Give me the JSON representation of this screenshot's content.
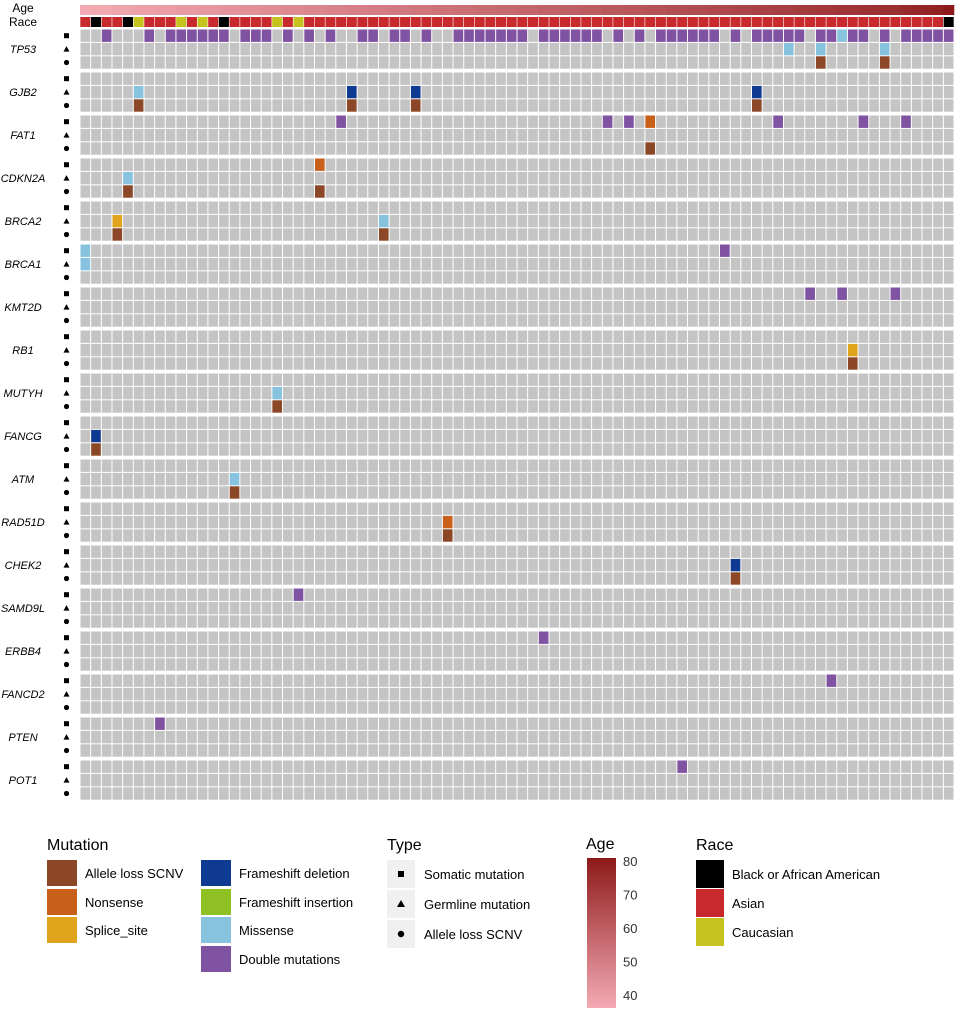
{
  "chart_data": {
    "type": "heatmap",
    "title": "",
    "n_samples": 82,
    "track_labels": {
      "age": "Age",
      "race": "Race"
    },
    "type_symbols": [
      "square",
      "triangle",
      "circle"
    ],
    "race_codes": {
      "B": "Black or African American",
      "A": "Asian",
      "C": "Caucasian"
    },
    "race_track": [
      "A",
      "B",
      "A",
      "A",
      "B",
      "C",
      "A",
      "A",
      "A",
      "C",
      "A",
      "C",
      "A",
      "B",
      "A",
      "A",
      "A",
      "A",
      "C",
      "A",
      "C",
      "A",
      "A",
      "A",
      "A",
      "A",
      "A",
      "A",
      "A",
      "A",
      "A",
      "A",
      "A",
      "A",
      "A",
      "A",
      "A",
      "A",
      "A",
      "A",
      "A",
      "A",
      "A",
      "A",
      "A",
      "A",
      "A",
      "A",
      "A",
      "A",
      "A",
      "A",
      "A",
      "A",
      "A",
      "A",
      "A",
      "A",
      "A",
      "A",
      "A",
      "A",
      "A",
      "A",
      "A",
      "A",
      "A",
      "A",
      "A",
      "A",
      "A",
      "A",
      "A",
      "A",
      "A",
      "A",
      "A",
      "A",
      "A",
      "A",
      "A",
      "B"
    ],
    "age_range": [
      36,
      80
    ],
    "age_track": [
      36,
      37,
      37,
      38,
      38,
      39,
      39,
      40,
      40,
      41,
      41,
      42,
      42,
      43,
      43,
      44,
      44,
      45,
      45,
      46,
      46,
      47,
      47,
      48,
      48,
      49,
      49,
      50,
      50,
      51,
      51,
      52,
      52,
      53,
      53,
      54,
      54,
      55,
      55,
      56,
      56,
      57,
      57,
      58,
      58,
      59,
      59,
      60,
      60,
      61,
      61,
      62,
      62,
      63,
      63,
      64,
      64,
      65,
      65,
      66,
      66,
      67,
      67,
      68,
      68,
      69,
      69,
      70,
      70,
      71,
      71,
      72,
      72,
      73,
      73,
      74,
      74,
      75,
      76,
      77,
      78,
      80
    ],
    "genes": [
      "TP53",
      "GJB2",
      "FAT1",
      "CDKN2A",
      "BRCA2",
      "BRCA1",
      "KMT2D",
      "RB1",
      "MUTYH",
      "FANCG",
      "ATM",
      "RAD51D",
      "CHEK2",
      "SAMD9L",
      "ERBB4",
      "FANCD2",
      "PTEN",
      "POT1"
    ],
    "events": [
      {
        "gene": "TP53",
        "row": 0,
        "sample": 2,
        "mut": "double"
      },
      {
        "gene": "TP53",
        "row": 0,
        "sample": 6,
        "mut": "double"
      },
      {
        "gene": "TP53",
        "row": 0,
        "sample": 8,
        "mut": "double"
      },
      {
        "gene": "TP53",
        "row": 0,
        "sample": 9,
        "mut": "double"
      },
      {
        "gene": "TP53",
        "row": 0,
        "sample": 10,
        "mut": "double"
      },
      {
        "gene": "TP53",
        "row": 0,
        "sample": 11,
        "mut": "double"
      },
      {
        "gene": "TP53",
        "row": 0,
        "sample": 12,
        "mut": "double"
      },
      {
        "gene": "TP53",
        "row": 0,
        "sample": 13,
        "mut": "double"
      },
      {
        "gene": "TP53",
        "row": 0,
        "sample": 15,
        "mut": "double"
      },
      {
        "gene": "TP53",
        "row": 0,
        "sample": 16,
        "mut": "double"
      },
      {
        "gene": "TP53",
        "row": 0,
        "sample": 17,
        "mut": "double"
      },
      {
        "gene": "TP53",
        "row": 0,
        "sample": 19,
        "mut": "double"
      },
      {
        "gene": "TP53",
        "row": 0,
        "sample": 21,
        "mut": "double"
      },
      {
        "gene": "TP53",
        "row": 0,
        "sample": 23,
        "mut": "double"
      },
      {
        "gene": "TP53",
        "row": 0,
        "sample": 26,
        "mut": "double"
      },
      {
        "gene": "TP53",
        "row": 0,
        "sample": 27,
        "mut": "double"
      },
      {
        "gene": "TP53",
        "row": 0,
        "sample": 29,
        "mut": "double"
      },
      {
        "gene": "TP53",
        "row": 0,
        "sample": 30,
        "mut": "double"
      },
      {
        "gene": "TP53",
        "row": 0,
        "sample": 32,
        "mut": "double"
      },
      {
        "gene": "TP53",
        "row": 0,
        "sample": 35,
        "mut": "double"
      },
      {
        "gene": "TP53",
        "row": 0,
        "sample": 36,
        "mut": "double"
      },
      {
        "gene": "TP53",
        "row": 0,
        "sample": 37,
        "mut": "double"
      },
      {
        "gene": "TP53",
        "row": 0,
        "sample": 38,
        "mut": "double"
      },
      {
        "gene": "TP53",
        "row": 0,
        "sample": 39,
        "mut": "double"
      },
      {
        "gene": "TP53",
        "row": 0,
        "sample": 40,
        "mut": "double"
      },
      {
        "gene": "TP53",
        "row": 0,
        "sample": 41,
        "mut": "double"
      },
      {
        "gene": "TP53",
        "row": 0,
        "sample": 43,
        "mut": "double"
      },
      {
        "gene": "TP53",
        "row": 0,
        "sample": 44,
        "mut": "double"
      },
      {
        "gene": "TP53",
        "row": 0,
        "sample": 45,
        "mut": "double"
      },
      {
        "gene": "TP53",
        "row": 0,
        "sample": 46,
        "mut": "double"
      },
      {
        "gene": "TP53",
        "row": 0,
        "sample": 47,
        "mut": "double"
      },
      {
        "gene": "TP53",
        "row": 0,
        "sample": 48,
        "mut": "double"
      },
      {
        "gene": "TP53",
        "row": 0,
        "sample": 50,
        "mut": "double"
      },
      {
        "gene": "TP53",
        "row": 0,
        "sample": 52,
        "mut": "double"
      },
      {
        "gene": "TP53",
        "row": 0,
        "sample": 54,
        "mut": "double"
      },
      {
        "gene": "TP53",
        "row": 0,
        "sample": 55,
        "mut": "double"
      },
      {
        "gene": "TP53",
        "row": 0,
        "sample": 56,
        "mut": "double"
      },
      {
        "gene": "TP53",
        "row": 0,
        "sample": 57,
        "mut": "double"
      },
      {
        "gene": "TP53",
        "row": 0,
        "sample": 58,
        "mut": "double"
      },
      {
        "gene": "TP53",
        "row": 0,
        "sample": 59,
        "mut": "double"
      },
      {
        "gene": "TP53",
        "row": 0,
        "sample": 61,
        "mut": "double"
      },
      {
        "gene": "TP53",
        "row": 0,
        "sample": 63,
        "mut": "double"
      },
      {
        "gene": "TP53",
        "row": 0,
        "sample": 64,
        "mut": "double"
      },
      {
        "gene": "TP53",
        "row": 0,
        "sample": 65,
        "mut": "double"
      },
      {
        "gene": "TP53",
        "row": 0,
        "sample": 66,
        "mut": "double"
      },
      {
        "gene": "TP53",
        "row": 0,
        "sample": 67,
        "mut": "double"
      },
      {
        "gene": "TP53",
        "row": 0,
        "sample": 69,
        "mut": "double"
      },
      {
        "gene": "TP53",
        "row": 0,
        "sample": 70,
        "mut": "double"
      },
      {
        "gene": "TP53",
        "row": 0,
        "sample": 71,
        "mut": "missense"
      },
      {
        "gene": "TP53",
        "row": 0,
        "sample": 72,
        "mut": "double"
      },
      {
        "gene": "TP53",
        "row": 0,
        "sample": 73,
        "mut": "double"
      },
      {
        "gene": "TP53",
        "row": 0,
        "sample": 75,
        "mut": "double"
      },
      {
        "gene": "TP53",
        "row": 0,
        "sample": 77,
        "mut": "double"
      },
      {
        "gene": "TP53",
        "row": 0,
        "sample": 78,
        "mut": "double"
      },
      {
        "gene": "TP53",
        "row": 0,
        "sample": 79,
        "mut": "double"
      },
      {
        "gene": "TP53",
        "row": 0,
        "sample": 80,
        "mut": "double"
      },
      {
        "gene": "TP53",
        "row": 0,
        "sample": 81,
        "mut": "double"
      },
      {
        "gene": "TP53",
        "row": 1,
        "sample": 66,
        "mut": "missense"
      },
      {
        "gene": "TP53",
        "row": 1,
        "sample": 69,
        "mut": "missense"
      },
      {
        "gene": "TP53",
        "row": 1,
        "sample": 75,
        "mut": "missense"
      },
      {
        "gene": "TP53",
        "row": 2,
        "sample": 69,
        "mut": "allele_loss"
      },
      {
        "gene": "TP53",
        "row": 2,
        "sample": 75,
        "mut": "allele_loss"
      },
      {
        "gene": "GJB2",
        "row": 1,
        "sample": 5,
        "mut": "missense"
      },
      {
        "gene": "GJB2",
        "row": 1,
        "sample": 25,
        "mut": "fs_del"
      },
      {
        "gene": "GJB2",
        "row": 1,
        "sample": 31,
        "mut": "fs_del"
      },
      {
        "gene": "GJB2",
        "row": 1,
        "sample": 63,
        "mut": "fs_del"
      },
      {
        "gene": "GJB2",
        "row": 2,
        "sample": 5,
        "mut": "allele_loss"
      },
      {
        "gene": "GJB2",
        "row": 2,
        "sample": 25,
        "mut": "allele_loss"
      },
      {
        "gene": "GJB2",
        "row": 2,
        "sample": 31,
        "mut": "allele_loss"
      },
      {
        "gene": "GJB2",
        "row": 2,
        "sample": 63,
        "mut": "allele_loss"
      },
      {
        "gene": "FAT1",
        "row": 0,
        "sample": 24,
        "mut": "double"
      },
      {
        "gene": "FAT1",
        "row": 0,
        "sample": 49,
        "mut": "double"
      },
      {
        "gene": "FAT1",
        "row": 0,
        "sample": 51,
        "mut": "double"
      },
      {
        "gene": "FAT1",
        "row": 0,
        "sample": 53,
        "mut": "nonsense"
      },
      {
        "gene": "FAT1",
        "row": 0,
        "sample": 65,
        "mut": "double"
      },
      {
        "gene": "FAT1",
        "row": 0,
        "sample": 73,
        "mut": "double"
      },
      {
        "gene": "FAT1",
        "row": 0,
        "sample": 77,
        "mut": "double"
      },
      {
        "gene": "FAT1",
        "row": 2,
        "sample": 53,
        "mut": "allele_loss"
      },
      {
        "gene": "CDKN2A",
        "row": 0,
        "sample": 22,
        "mut": "nonsense"
      },
      {
        "gene": "CDKN2A",
        "row": 1,
        "sample": 4,
        "mut": "missense"
      },
      {
        "gene": "CDKN2A",
        "row": 2,
        "sample": 4,
        "mut": "allele_loss"
      },
      {
        "gene": "CDKN2A",
        "row": 2,
        "sample": 22,
        "mut": "allele_loss"
      },
      {
        "gene": "BRCA2",
        "row": 1,
        "sample": 3,
        "mut": "splice"
      },
      {
        "gene": "BRCA2",
        "row": 1,
        "sample": 28,
        "mut": "missense"
      },
      {
        "gene": "BRCA2",
        "row": 2,
        "sample": 3,
        "mut": "allele_loss"
      },
      {
        "gene": "BRCA2",
        "row": 2,
        "sample": 28,
        "mut": "allele_loss"
      },
      {
        "gene": "BRCA1",
        "row": 0,
        "sample": 0,
        "mut": "missense"
      },
      {
        "gene": "BRCA1",
        "row": 0,
        "sample": 60,
        "mut": "double"
      },
      {
        "gene": "BRCA1",
        "row": 1,
        "sample": 0,
        "mut": "missense"
      },
      {
        "gene": "KMT2D",
        "row": 0,
        "sample": 68,
        "mut": "double"
      },
      {
        "gene": "KMT2D",
        "row": 0,
        "sample": 71,
        "mut": "double"
      },
      {
        "gene": "KMT2D",
        "row": 0,
        "sample": 76,
        "mut": "double"
      },
      {
        "gene": "RB1",
        "row": 1,
        "sample": 72,
        "mut": "splice"
      },
      {
        "gene": "RB1",
        "row": 2,
        "sample": 72,
        "mut": "allele_loss"
      },
      {
        "gene": "MUTYH",
        "row": 1,
        "sample": 18,
        "mut": "missense"
      },
      {
        "gene": "MUTYH",
        "row": 2,
        "sample": 18,
        "mut": "allele_loss"
      },
      {
        "gene": "FANCG",
        "row": 1,
        "sample": 1,
        "mut": "fs_del"
      },
      {
        "gene": "FANCG",
        "row": 2,
        "sample": 1,
        "mut": "allele_loss"
      },
      {
        "gene": "ATM",
        "row": 1,
        "sample": 14,
        "mut": "missense"
      },
      {
        "gene": "ATM",
        "row": 2,
        "sample": 14,
        "mut": "allele_loss"
      },
      {
        "gene": "RAD51D",
        "row": 1,
        "sample": 34,
        "mut": "nonsense"
      },
      {
        "gene": "RAD51D",
        "row": 2,
        "sample": 34,
        "mut": "allele_loss"
      },
      {
        "gene": "CHEK2",
        "row": 1,
        "sample": 61,
        "mut": "fs_del"
      },
      {
        "gene": "CHEK2",
        "row": 2,
        "sample": 61,
        "mut": "allele_loss"
      },
      {
        "gene": "SAMD9L",
        "row": 0,
        "sample": 20,
        "mut": "double"
      },
      {
        "gene": "ERBB4",
        "row": 0,
        "sample": 43,
        "mut": "double"
      },
      {
        "gene": "FANCD2",
        "row": 0,
        "sample": 70,
        "mut": "double"
      },
      {
        "gene": "PTEN",
        "row": 0,
        "sample": 7,
        "mut": "double"
      },
      {
        "gene": "POT1",
        "row": 0,
        "sample": 56,
        "mut": "double"
      }
    ],
    "colors": {
      "allele_loss": "#8b4726",
      "nonsense": "#c8601a",
      "splice": "#e0a31c",
      "fs_del": "#0e3b91",
      "fs_ins": "#8fc125",
      "missense": "#87c2df",
      "double": "#8052a2",
      "empty": "#c4c4c4",
      "race_B": "#000000",
      "race_A": "#c7292c",
      "race_C": "#c6c31e",
      "age_low": "#f4aab4",
      "age_high": "#8d1a1a"
    },
    "legend": {
      "mutation": {
        "title": "Mutation",
        "items": [
          {
            "key": "allele_loss",
            "label": "Allele loss SCNV"
          },
          {
            "key": "nonsense",
            "label": "Nonsense"
          },
          {
            "key": "splice",
            "label": "Splice_site"
          },
          {
            "key": "fs_del",
            "label": "Frameshift deletion"
          },
          {
            "key": "fs_ins",
            "label": "Frameshift insertion"
          },
          {
            "key": "missense",
            "label": "Missense"
          },
          {
            "key": "double",
            "label": "Double mutations"
          }
        ]
      },
      "type": {
        "title": "Type",
        "items": [
          {
            "symbol": "square",
            "label": "Somatic mutation"
          },
          {
            "symbol": "triangle",
            "label": "Germline mutation"
          },
          {
            "symbol": "circle",
            "label": "Allele loss SCNV"
          }
        ]
      },
      "age": {
        "title": "Age",
        "ticks": [
          40,
          50,
          60,
          70,
          80
        ]
      },
      "race": {
        "title": "Race",
        "items": [
          {
            "key": "race_B",
            "label": "Black or African American"
          },
          {
            "key": "race_A",
            "label": "Asian"
          },
          {
            "key": "race_C",
            "label": "Caucasian"
          }
        ]
      }
    }
  }
}
